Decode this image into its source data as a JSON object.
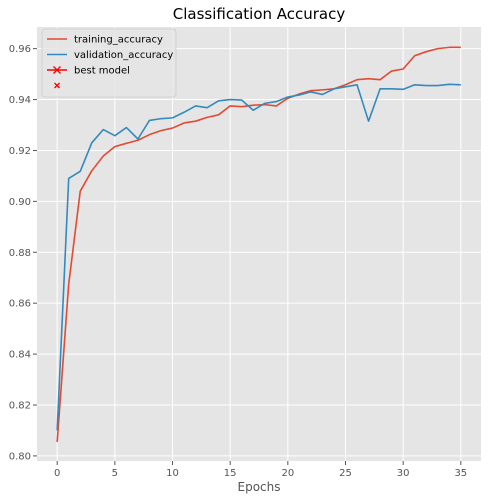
{
  "chart_data": {
    "type": "line",
    "title": "Classification Accuracy",
    "xlabel": "Epochs",
    "ylabel": "",
    "xlim": [
      -1.75,
      36.75
    ],
    "ylim": [
      0.798,
      0.9685
    ],
    "x_ticks": [
      0,
      5,
      10,
      15,
      20,
      25,
      30,
      35
    ],
    "y_ticks": [
      0.8,
      0.82,
      0.84,
      0.86,
      0.88,
      0.9,
      0.92,
      0.94,
      0.96
    ],
    "grid": true,
    "legend_position": "top-left",
    "x": [
      0,
      1,
      2,
      3,
      4,
      5,
      6,
      7,
      8,
      9,
      10,
      11,
      12,
      13,
      14,
      15,
      16,
      17,
      18,
      19,
      20,
      21,
      22,
      23,
      24,
      25,
      26,
      27,
      28,
      29,
      30,
      31,
      32,
      33,
      34,
      35
    ],
    "series": [
      {
        "name": "training_accuracy",
        "color": "#E24A33",
        "values": [
          0.8055,
          0.8675,
          0.904,
          0.912,
          0.9178,
          0.9215,
          0.9228,
          0.924,
          0.9262,
          0.9278,
          0.9288,
          0.9308,
          0.9315,
          0.933,
          0.934,
          0.9375,
          0.9372,
          0.9378,
          0.938,
          0.9375,
          0.9405,
          0.9422,
          0.9435,
          0.9438,
          0.9442,
          0.9458,
          0.9478,
          0.9482,
          0.9478,
          0.9512,
          0.952,
          0.9572,
          0.9588,
          0.96,
          0.9605,
          0.9605
        ]
      },
      {
        "name": "validation_accuracy",
        "color": "#348ABD",
        "values": [
          0.81,
          0.909,
          0.9118,
          0.923,
          0.9282,
          0.9258,
          0.929,
          0.9245,
          0.9318,
          0.9325,
          0.9328,
          0.935,
          0.9375,
          0.9368,
          0.9395,
          0.94,
          0.9398,
          0.9358,
          0.9385,
          0.9392,
          0.941,
          0.9418,
          0.943,
          0.942,
          0.9442,
          0.945,
          0.9458,
          0.9315,
          0.9442,
          0.9442,
          0.944,
          0.9458,
          0.9455,
          0.9455,
          0.946,
          0.9458
        ]
      }
    ],
    "legend": [
      {
        "label": "training_accuracy",
        "color": "#E24A33",
        "marker": "line"
      },
      {
        "label": "validation_accuracy",
        "color": "#348ABD",
        "marker": "line"
      },
      {
        "label": "best model",
        "color": "#FF0000",
        "marker": "x-line"
      },
      {
        "label": "",
        "color": "#FF0000",
        "marker": "x"
      }
    ]
  }
}
